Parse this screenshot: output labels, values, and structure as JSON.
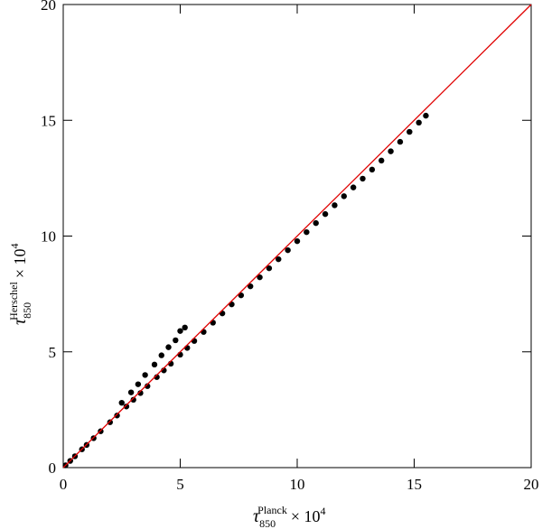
{
  "chart_data": {
    "type": "scatter",
    "xlabel": [
      "τ",
      "850",
      "Planck",
      "× 10",
      "4"
    ],
    "ylabel": [
      "τ",
      "850",
      "Herschel",
      "× 10",
      "4"
    ],
    "x": [
      0.1,
      0.3,
      0.5,
      0.8,
      1.0,
      1.3,
      1.6,
      2.0,
      2.3,
      2.7,
      3.0,
      3.3,
      3.6,
      4.0,
      4.3,
      4.6,
      5.0,
      5.3,
      5.6,
      6.0,
      6.4,
      6.8,
      7.2,
      7.6,
      8.0,
      8.4,
      8.8,
      9.2,
      9.6,
      10.0,
      10.4,
      10.8,
      11.2,
      11.6,
      12.0,
      12.4,
      12.8,
      13.2,
      13.6,
      14.0,
      14.4,
      14.8,
      15.2,
      15.5,
      2.5,
      2.9,
      3.2,
      3.5,
      3.9,
      4.2,
      4.5,
      4.8,
      5.2,
      5.0
    ],
    "y": [
      0.1,
      0.29,
      0.49,
      0.79,
      0.98,
      1.27,
      1.57,
      1.96,
      2.25,
      2.64,
      2.93,
      3.22,
      3.52,
      3.91,
      4.2,
      4.49,
      4.88,
      5.17,
      5.47,
      5.86,
      6.26,
      6.66,
      7.05,
      7.44,
      7.83,
      8.22,
      8.61,
      9.0,
      9.39,
      9.78,
      10.17,
      10.56,
      10.95,
      11.33,
      11.72,
      12.1,
      12.48,
      12.87,
      13.26,
      13.66,
      14.07,
      14.5,
      14.9,
      15.2,
      2.8,
      3.25,
      3.6,
      4.0,
      4.45,
      4.85,
      5.2,
      5.5,
      6.05,
      5.9
    ],
    "color": "#000000",
    "line": {
      "x": [
        0,
        20
      ],
      "y": [
        0,
        20
      ],
      "color": "#e00000"
    },
    "xlim": [
      0,
      20
    ],
    "ylim": [
      0,
      20
    ],
    "xticks": [
      0,
      5,
      10,
      15,
      20
    ],
    "yticks": [
      0,
      5,
      10,
      15,
      20
    ]
  }
}
